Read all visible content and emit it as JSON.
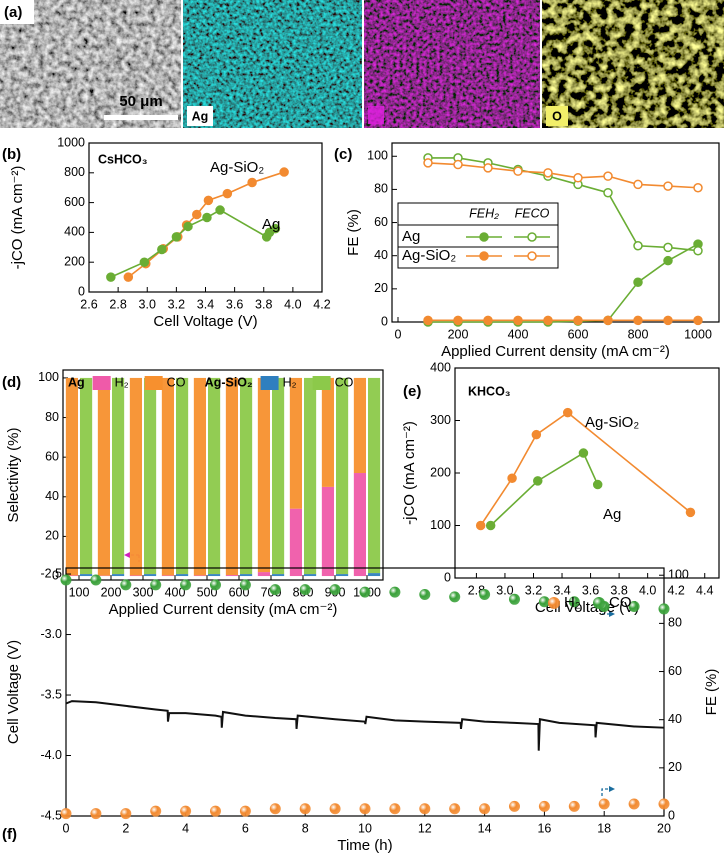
{
  "panel_a": {
    "label": "(a)",
    "scale_bar": "50 μm",
    "element_labels": [
      "Ag",
      "O"
    ]
  },
  "chart_data": [
    {
      "panel_label": "(b)",
      "type": "line",
      "annotation": "CsHCO₃",
      "xlabel": "Cell Voltage (V)",
      "ylabel": "-jCO (mA cm⁻²)",
      "xlim": [
        2.6,
        4.2
      ],
      "xticks": [
        2.6,
        2.8,
        {
          "value": 3,
          "label": "3.0"
        },
        3.2,
        3.4,
        3.6,
        3.8,
        {
          "value": 4,
          "label": "4.0"
        },
        4.2
      ],
      "ylim": [
        0,
        1000
      ],
      "yticks": [
        0,
        200,
        400,
        600,
        800,
        1000
      ],
      "series": [
        {
          "name": "Ag-SiO₂",
          "color": "#f28a30",
          "style": "line-markers",
          "x": [
            2.87,
            2.99,
            3.11,
            3.21,
            3.27,
            3.34,
            3.42,
            3.55,
            3.72,
            3.94
          ],
          "values": [
            100,
            190,
            290,
            370,
            450,
            520,
            615,
            660,
            735,
            805
          ]
        },
        {
          "name": "Ag",
          "color": "#6aad34",
          "style": "line-markers",
          "x": [
            2.75,
            2.98,
            3.1,
            3.2,
            3.28,
            3.41,
            3.5,
            3.82,
            3.84,
            3.88
          ],
          "values": [
            100,
            200,
            285,
            370,
            440,
            500,
            550,
            370,
            400,
            425
          ]
        }
      ]
    },
    {
      "panel_label": "(c)",
      "type": "line",
      "xlabel": "Applied Current density (mA cm⁻²)",
      "ylabel": "FE (%)",
      "xlim": [
        -20,
        1070
      ],
      "xticks": [
        0,
        200,
        400,
        600,
        800,
        1000
      ],
      "ylim": [
        0,
        108
      ],
      "yticks": [
        0,
        20,
        40,
        60,
        80,
        100
      ],
      "x": [
        100,
        200,
        300,
        400,
        500,
        600,
        700,
        800,
        900,
        1000
      ],
      "legend_columns": [
        "FEH₂",
        "FECO"
      ],
      "groups": [
        {
          "name": "Ag",
          "color": "#6aad34",
          "series": [
            {
              "marker": "filled",
              "values": [
                0,
                0,
                0,
                0,
                0,
                0.5,
                1,
                24,
                37,
                47
              ]
            },
            {
              "marker": "open",
              "values": [
                99,
                99,
                96,
                92,
                88,
                83,
                78,
                46,
                45,
                43
              ]
            }
          ]
        },
        {
          "name": "Ag-SiO₂",
          "color": "#f28a30",
          "series": [
            {
              "marker": "filled",
              "values": [
                1,
                1,
                1,
                1,
                1,
                1,
                1,
                1,
                1,
                1
              ]
            },
            {
              "marker": "open",
              "values": [
                96,
                95,
                93,
                91,
                90,
                87,
                88,
                83,
                82,
                81
              ]
            }
          ]
        }
      ]
    },
    {
      "panel_label": "(d)",
      "type": "bar",
      "stacked": true,
      "xlabel": "Applied Current density (mA cm⁻²)",
      "ylabel": "Selectivity (%)",
      "categories": [
        "100",
        "200",
        "300",
        "400",
        "500",
        "600",
        "700",
        "800",
        "900",
        "1000"
      ],
      "ylim": [
        -2,
        104
      ],
      "yticks": [
        0,
        20,
        40,
        60,
        80,
        100
      ],
      "groups": [
        {
          "name": "Ag",
          "series": [
            {
              "name": "H₂",
              "color": "#ef5aa9",
              "values": [
                0.3,
                0.2,
                0.3,
                0.3,
                0.3,
                0.5,
                2,
                34,
                45,
                52
              ]
            },
            {
              "name": "CO",
              "color": "#f7902e",
              "values": [
                99.7,
                99.8,
                99.7,
                99.7,
                99.7,
                99.5,
                98,
                66,
                55,
                48
              ]
            }
          ]
        },
        {
          "name": "Ag-SiO₂",
          "series": [
            {
              "name": "H₂",
              "color": "#2f7fbf",
              "values": [
                1,
                1,
                1,
                1,
                1,
                1,
                1,
                1,
                1,
                1.5
              ]
            },
            {
              "name": "CO",
              "color": "#8cc94a",
              "values": [
                99,
                99,
                99,
                99,
                99,
                99,
                99,
                99,
                99,
                98.5
              ]
            }
          ]
        }
      ]
    },
    {
      "panel_label": "(e)",
      "type": "line",
      "annotation": "KHCO₃",
      "xlabel": "Cell Voltage (V)",
      "ylabel": "-jCO (mA cm⁻²)",
      "xlim": [
        2.65,
        4.5
      ],
      "xticks": [
        2.8,
        {
          "value": 3,
          "label": "3.0"
        },
        3.2,
        3.4,
        3.6,
        3.8,
        {
          "value": 4,
          "label": "4.0"
        },
        4.2,
        4.4
      ],
      "ylim": [
        0,
        400
      ],
      "yticks": [
        0,
        100,
        200,
        300,
        400
      ],
      "series": [
        {
          "name": "Ag-SiO₂",
          "color": "#f28a30",
          "style": "line-markers",
          "x": [
            2.83,
            3.05,
            3.22,
            3.44,
            4.3
          ],
          "values": [
            100,
            190,
            273,
            315,
            125
          ]
        },
        {
          "name": "Ag",
          "color": "#6aad34",
          "style": "line-markers",
          "x": [
            2.9,
            3.23,
            3.55,
            3.65
          ],
          "values": [
            100,
            185,
            238,
            178
          ]
        }
      ]
    },
    {
      "panel_label": "(f)",
      "type": "line",
      "xlabel": "Time (h)",
      "ylabel": "Cell Voltage (V)",
      "y2label": "FE (%)",
      "xlim": [
        0,
        20
      ],
      "xticks": [
        0,
        2,
        4,
        6,
        8,
        10,
        12,
        14,
        16,
        18,
        20
      ],
      "ylim": [
        -4.5,
        -2.45
      ],
      "yticks": [
        -4.5,
        {
          "value": -4,
          "label": "-4.0"
        },
        -3.5,
        {
          "value": -3,
          "label": "-3.0"
        },
        -2.5
      ],
      "y2lim": [
        0,
        103
      ],
      "y2ticks": [
        0,
        20,
        40,
        60,
        80,
        100
      ],
      "series": [
        {
          "color": "#111111",
          "style": "line",
          "x": [
            0,
            0.2,
            1,
            2,
            3,
            3.4,
            3.41,
            3.45,
            4,
            5,
            5.2,
            5.21,
            5.25,
            6,
            7,
            7.7,
            7.71,
            7.75,
            9,
            10,
            10.01,
            10.05,
            11,
            12,
            13.2,
            13.21,
            13.25,
            14,
            15,
            15.8,
            15.81,
            15.85,
            16.5,
            17.7,
            17.71,
            17.75,
            19,
            20
          ],
          "values": [
            -3.57,
            -3.55,
            -3.56,
            -3.59,
            -3.62,
            -3.63,
            -3.72,
            -3.65,
            -3.65,
            -3.67,
            -3.68,
            -3.77,
            -3.64,
            -3.67,
            -3.69,
            -3.7,
            -3.78,
            -3.67,
            -3.7,
            -3.72,
            -3.74,
            -3.68,
            -3.71,
            -3.72,
            -3.73,
            -3.78,
            -3.7,
            -3.72,
            -3.73,
            -3.74,
            -3.96,
            -3.7,
            -3.73,
            -3.75,
            -3.85,
            -3.73,
            -3.76,
            -3.77
          ]
        },
        {
          "name": "H₂",
          "color": "#f28a30",
          "style": "markers",
          "axis": "y2",
          "x": [
            0,
            1,
            2,
            3,
            4,
            5,
            6,
            7,
            8,
            9,
            10,
            11,
            12,
            13,
            14,
            15,
            16,
            17,
            18,
            19,
            20
          ],
          "values": [
            1,
            1,
            1,
            2,
            2,
            2,
            2,
            3,
            3,
            3,
            3,
            3,
            3,
            3,
            3,
            4,
            4,
            4,
            5,
            5,
            5
          ]
        },
        {
          "name": "CO",
          "color": "#3aa13a",
          "style": "markers",
          "axis": "y2",
          "x": [
            0,
            1,
            2,
            3,
            4,
            5,
            6,
            7,
            8,
            9,
            10,
            11,
            12,
            13,
            14,
            15,
            16,
            17,
            18,
            19,
            20
          ],
          "values": [
            98,
            98,
            96,
            96,
            96,
            96,
            96,
            94,
            94,
            94,
            93,
            93,
            92,
            91,
            92,
            90,
            89,
            89,
            87,
            87,
            86
          ]
        }
      ]
    }
  ]
}
